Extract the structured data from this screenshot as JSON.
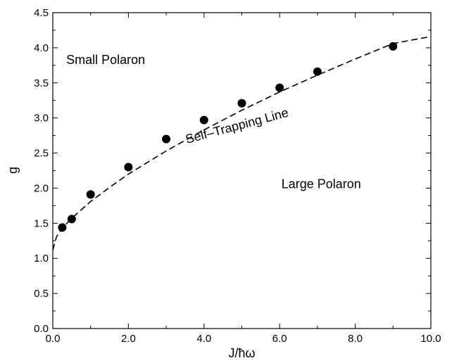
{
  "chart_data": {
    "type": "scatter",
    "title": "",
    "xlabel": "J/ħω",
    "ylabel": "g",
    "xlim": [
      0.0,
      10.0
    ],
    "ylim": [
      0.0,
      4.5
    ],
    "x_ticks": [
      0.0,
      2.0,
      4.0,
      6.0,
      8.0,
      10.0
    ],
    "x_tick_labels": [
      "0.0",
      "2.0",
      "4.0",
      "6.0",
      "8.0",
      "10.0"
    ],
    "y_ticks": [
      0.0,
      0.5,
      1.0,
      1.5,
      2.0,
      2.5,
      3.0,
      3.5,
      4.0,
      4.5
    ],
    "y_tick_labels": [
      "0.0",
      "0.5",
      "1.0",
      "1.5",
      "2.0",
      "2.5",
      "3.0",
      "3.5",
      "4.0",
      "4.5"
    ],
    "grid": false,
    "series": [
      {
        "marker": "filled-circle",
        "color": "#000000",
        "x": [
          0.25,
          0.5,
          1.0,
          2.0,
          3.0,
          4.0,
          5.0,
          6.0,
          7.0,
          9.0
        ],
        "y": [
          1.44,
          1.56,
          1.91,
          2.3,
          2.7,
          2.97,
          3.21,
          3.43,
          3.66,
          4.02
        ]
      },
      {
        "style": "dashed-line",
        "color": "#000000",
        "x": [
          0.0,
          0.1,
          0.25,
          0.5,
          1.0,
          1.5,
          2.0,
          3.0,
          4.0,
          5.0,
          6.0,
          7.0,
          8.0,
          9.0,
          10.0
        ],
        "y": [
          1.12,
          1.31,
          1.43,
          1.57,
          1.81,
          2.01,
          2.2,
          2.53,
          2.83,
          3.11,
          3.37,
          3.61,
          3.84,
          4.06,
          4.16
        ]
      }
    ],
    "annotations": [
      {
        "text": "Small Polaron",
        "x": 1.4,
        "y": 3.77,
        "rotation": 0
      },
      {
        "text": "Large Polaron",
        "x": 7.1,
        "y": 2.0,
        "rotation": 0
      },
      {
        "text": "Self–Trapping Line",
        "x": 4.9,
        "y": 2.83,
        "rotation": -15
      }
    ]
  }
}
